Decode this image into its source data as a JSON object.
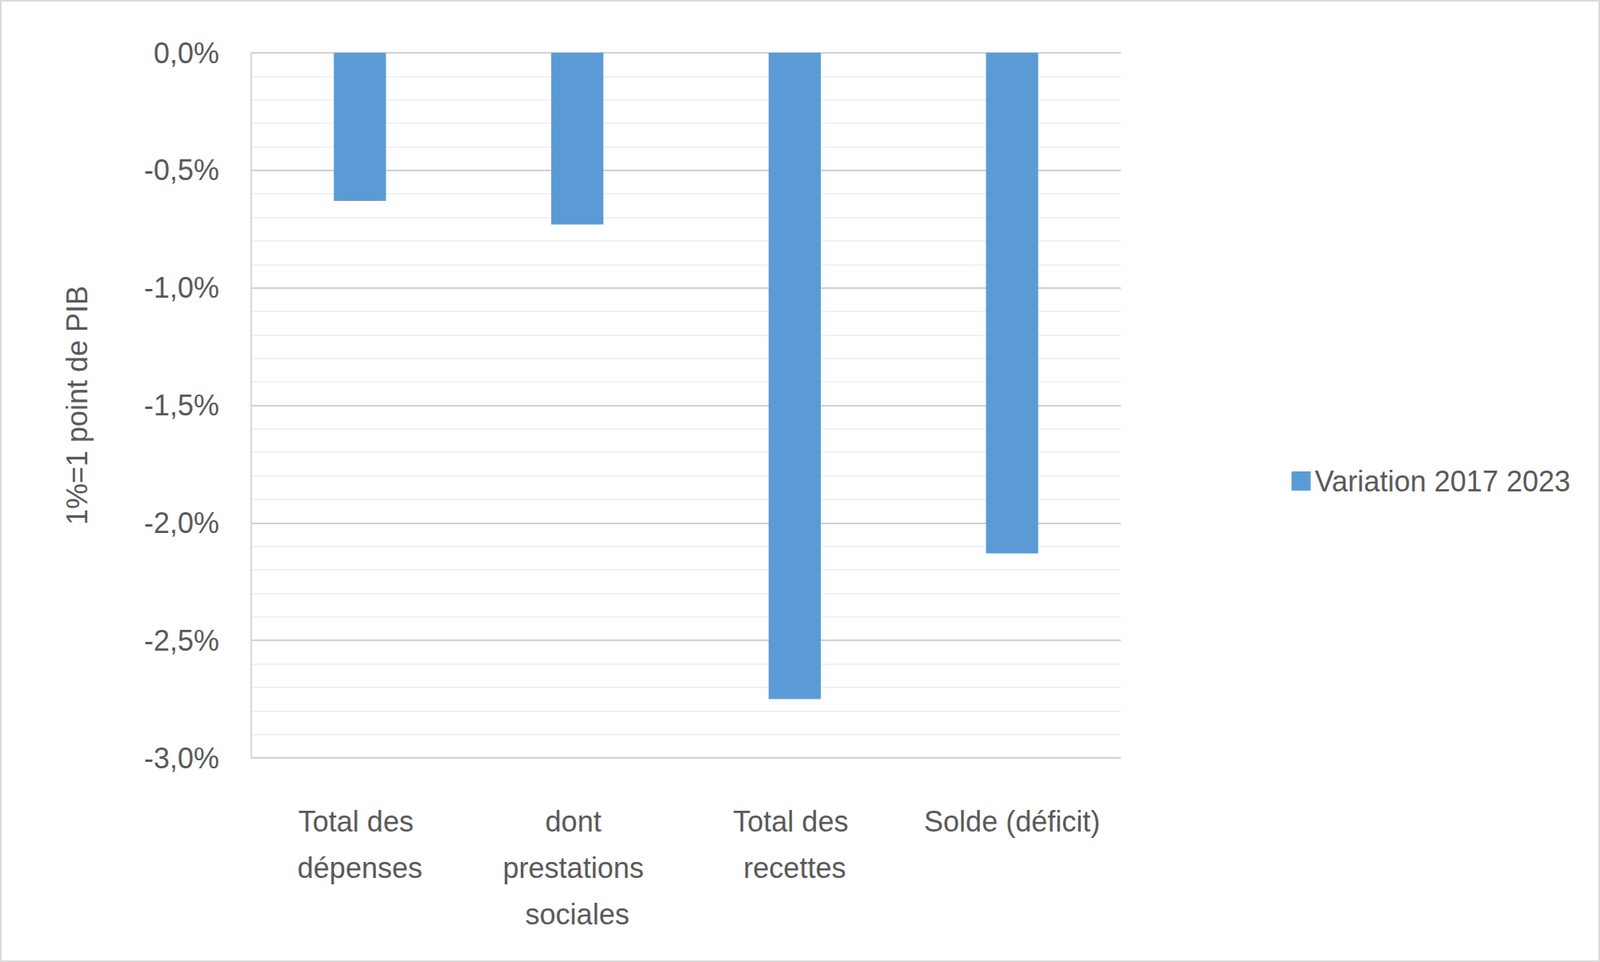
{
  "chart_data": {
    "type": "bar",
    "categories": [
      "Total des dépenses",
      "dont prestations sociales",
      "Total des recettes",
      "Solde (déficit)"
    ],
    "series": [
      {
        "name": "Variation 2017 2023",
        "color": "#5b9bd5",
        "values": [
          -0.63,
          -0.73,
          -2.75,
          -2.13
        ]
      }
    ],
    "y_label": "1%=1 point de PIB",
    "ylim": [
      -3.0,
      0.0
    ],
    "yticks": [
      {
        "value": -3.0,
        "label": "-3,0%"
      },
      {
        "value": -2.5,
        "label": "-2,5%"
      },
      {
        "value": -2.0,
        "label": "-2,0%"
      },
      {
        "value": -1.5,
        "label": "-1,5%"
      },
      {
        "value": -1.0,
        "label": "-1,0%"
      },
      {
        "value": -0.5,
        "label": "-0,5%"
      },
      {
        "value": 0.0,
        "label": "0,0%"
      }
    ],
    "grid": true,
    "legend": "right",
    "data_labels": false
  }
}
